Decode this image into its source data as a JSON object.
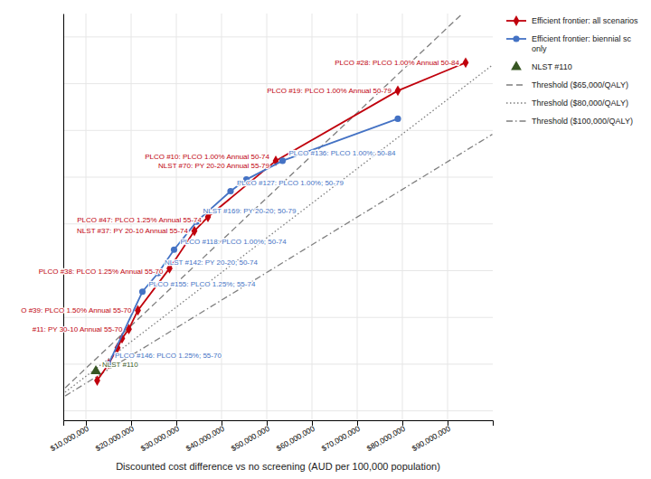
{
  "chart_data": {
    "type": "line",
    "xlabel": "Discounted cost difference vs no screening (AUD per 100,000 population)",
    "xlim": [
      5000000,
      100000000
    ],
    "ylim": [
      -0.02,
      0.85
    ],
    "xticks": [
      {
        "value": 10000000,
        "label": "$10,000,000"
      },
      {
        "value": 20000000,
        "label": "$20,000,000"
      },
      {
        "value": 30000000,
        "label": "$30,000,000"
      },
      {
        "value": 40000000,
        "label": "$40,000,000"
      },
      {
        "value": 50000000,
        "label": "$50,000,000"
      },
      {
        "value": 60000000,
        "label": "$60,000,000"
      },
      {
        "value": 70000000,
        "label": "$70,000,000"
      },
      {
        "value": 80000000,
        "label": "$80,000,000"
      },
      {
        "value": 90000000,
        "label": "$90,000,000"
      }
    ],
    "yticks": [
      0,
      0.1,
      0.2,
      0.3,
      0.4,
      0.5,
      0.6,
      0.7,
      0.8
    ],
    "tick_labels": "x",
    "grid": true,
    "legend": "right",
    "series": [
      {
        "name": "Efficient frontier: all scenarios",
        "type": "line",
        "marker": "diamond",
        "line_style": "solid",
        "color": "#C0000C",
        "x": [
          12500000,
          15000000,
          17000000,
          18000000,
          19500000,
          21500000,
          28500000,
          34000000,
          37000000,
          52000000,
          79000000,
          94000000
        ],
        "values": [
          0.065,
          0.1,
          0.135,
          0.155,
          0.175,
          0.215,
          0.305,
          0.385,
          0.415,
          0.535,
          0.685,
          0.745
        ]
      },
      {
        "name": "Efficient frontier: biennial sc\nonly",
        "type": "line",
        "marker": "circle",
        "line_style": "solid",
        "color": "#4472C4",
        "x": [
          15000000,
          22500000,
          26000000,
          29500000,
          34500000,
          42000000,
          45500000,
          53500000,
          79000000
        ],
        "values": [
          0.1,
          0.255,
          0.295,
          0.345,
          0.405,
          0.47,
          0.495,
          0.535,
          0.625
        ]
      },
      {
        "name": "NLST #110",
        "type": "scatter",
        "marker": "triangle",
        "color": "#375623",
        "x": [
          12200000
        ],
        "values": [
          0.085
        ]
      },
      {
        "name": "Threshold ($65,000/QALY)",
        "type": "line",
        "line_style": "dashed",
        "color": "#7F7F7F",
        "x": [
          5400000,
          93150000
        ],
        "values": [
          0.0492,
          0.8487
        ]
      },
      {
        "name": "Threshold ($80,000/QALY)",
        "type": "line",
        "line_style": "dotted",
        "color": "#7F7F7F",
        "x": [
          5400000,
          99900000
        ],
        "values": [
          0.039975,
          0.7395375
        ]
      },
      {
        "name": "Threshold ($100,000/QALY)",
        "type": "line",
        "line_style": "dashdot",
        "color": "#7F7F7F",
        "x": [
          5400000,
          99900000
        ],
        "values": [
          0.03198,
          0.59163
        ]
      }
    ],
    "annotations": [
      {
        "text": "#11: PY 30-10 Annual 55-70",
        "x": 19500000,
        "y": 0.175,
        "color": "#C0000C"
      },
      {
        "text": "O #39: PLCO 1.50% Annual 55-70",
        "x": 21500000,
        "y": 0.215,
        "color": "#C0000C"
      },
      {
        "text": "PLCO #38: PLCO 1.25% Annual 55-70",
        "x": 28500000,
        "y": 0.305,
        "color": "#C0000C"
      },
      {
        "text": "NLST #37: PY 20-10 Annual 55-74",
        "x": 34000000,
        "y": 0.385,
        "color": "#C0000C"
      },
      {
        "text": "PLCO #47: PLCO 1.25% Annual 55-74",
        "x": 37000000,
        "y": 0.415,
        "color": "#C0000C"
      },
      {
        "text": "PLCO #10: PLCO 1.00% Annual 50-74",
        "x": 52000000,
        "y": 0.535,
        "color": "#C0000C"
      },
      {
        "text": "NLST #70: PY 20-20 Annual 55-79",
        "x": 52000000,
        "y": 0.535,
        "color": "#C0000C"
      },
      {
        "text": "PLCO #19: PLCO 1.00% Annual 50-79",
        "x": 79000000,
        "y": 0.685,
        "color": "#C0000C"
      },
      {
        "text": "PLCO #28: PLCO 1.00% Annual 50-84",
        "x": 94000000,
        "y": 0.745,
        "color": "#C0000C"
      },
      {
        "text": "PLCO #146: PLCO 1.25%; 55-70",
        "x": 15000000,
        "y": 0.1,
        "color": "#4472C4"
      },
      {
        "text": "PLCO #155: PLCO 1.25%; 55-74",
        "x": 22500000,
        "y": 0.255,
        "color": "#4472C4"
      },
      {
        "text": "NLST #142: PY 20-20; 50-74",
        "x": 26000000,
        "y": 0.295,
        "color": "#4472C4"
      },
      {
        "text": "PLCO #118: PLCO 1.00%; 50-74",
        "x": 29500000,
        "y": 0.345,
        "color": "#4472C4"
      },
      {
        "text": "NLST #169: PY 20-20; 50-79",
        "x": 34500000,
        "y": 0.405,
        "color": "#4472C4"
      },
      {
        "text": "PLCO #127: PLCO 1.00%; 50-79",
        "x": 42000000,
        "y": 0.47,
        "color": "#4472C4"
      },
      {
        "text": "PLCO #136: PLCO 1.00%; 50-84",
        "x": 53500000,
        "y": 0.535,
        "color": "#4472C4"
      },
      {
        "text": "NLST #110",
        "x": 12200000,
        "y": 0.085,
        "color": "#375623"
      }
    ]
  }
}
